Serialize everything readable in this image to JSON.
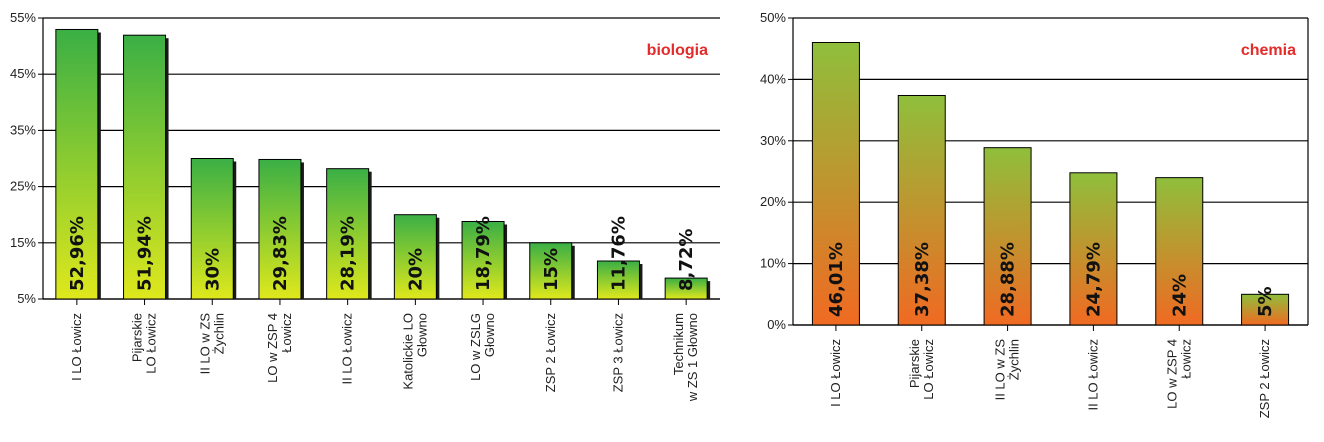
{
  "chart_data": [
    {
      "type": "bar",
      "annotation": "biologia",
      "categories": [
        "I LO Łowicz",
        "Pijarskie\nLO Łowicz",
        "II LO w ZS\nŻychlin",
        "LO w ZSP 4\nŁowicz",
        "II LO Łowicz",
        "Katolickie LO\nGłowno",
        "LO w ZSLG\nGłowno",
        "ZSP 2 Łowicz",
        "ZSP 3 Łowicz",
        "Technikum\nw ZS 1 Głowno"
      ],
      "values": [
        52.96,
        51.94,
        30,
        29.83,
        28.19,
        20,
        18.79,
        15,
        11.76,
        8.72
      ],
      "value_labels": [
        "52,96%",
        "51,94%",
        "30%",
        "29,83%",
        "28,19%",
        "20%",
        "18,79%",
        "15%",
        "11,76%",
        "8,72%"
      ],
      "yticks": [
        "5%",
        "15%",
        "25%",
        "35%",
        "45%",
        "55%"
      ],
      "ylim": [
        5,
        55
      ],
      "grid": true,
      "colors": {
        "top": "#3aaf45",
        "bottom": "#dfe81c",
        "annotation": "#e52a2a"
      }
    },
    {
      "type": "bar",
      "annotation": "chemia",
      "categories": [
        "I LO Łowicz",
        "Pijarskie\nLO Łowicz",
        "II LO w ZS\nŻychlin",
        "II LO Łowicz",
        "LO w ZSP 4\nŁowicz",
        "ZSP 2 Łowicz"
      ],
      "values": [
        46.01,
        37.38,
        28.88,
        24.79,
        24,
        5
      ],
      "value_labels": [
        "46,01%",
        "37,38%",
        "28,88%",
        "24,79%",
        "24%",
        "5%"
      ],
      "yticks": [
        "0%",
        "10%",
        "20%",
        "30%",
        "40%",
        "50%"
      ],
      "ylim": [
        0,
        50
      ],
      "grid": true,
      "colors": {
        "top": "#8fbf3c",
        "bottom": "#f06a22",
        "annotation": "#e52a2a"
      }
    }
  ]
}
